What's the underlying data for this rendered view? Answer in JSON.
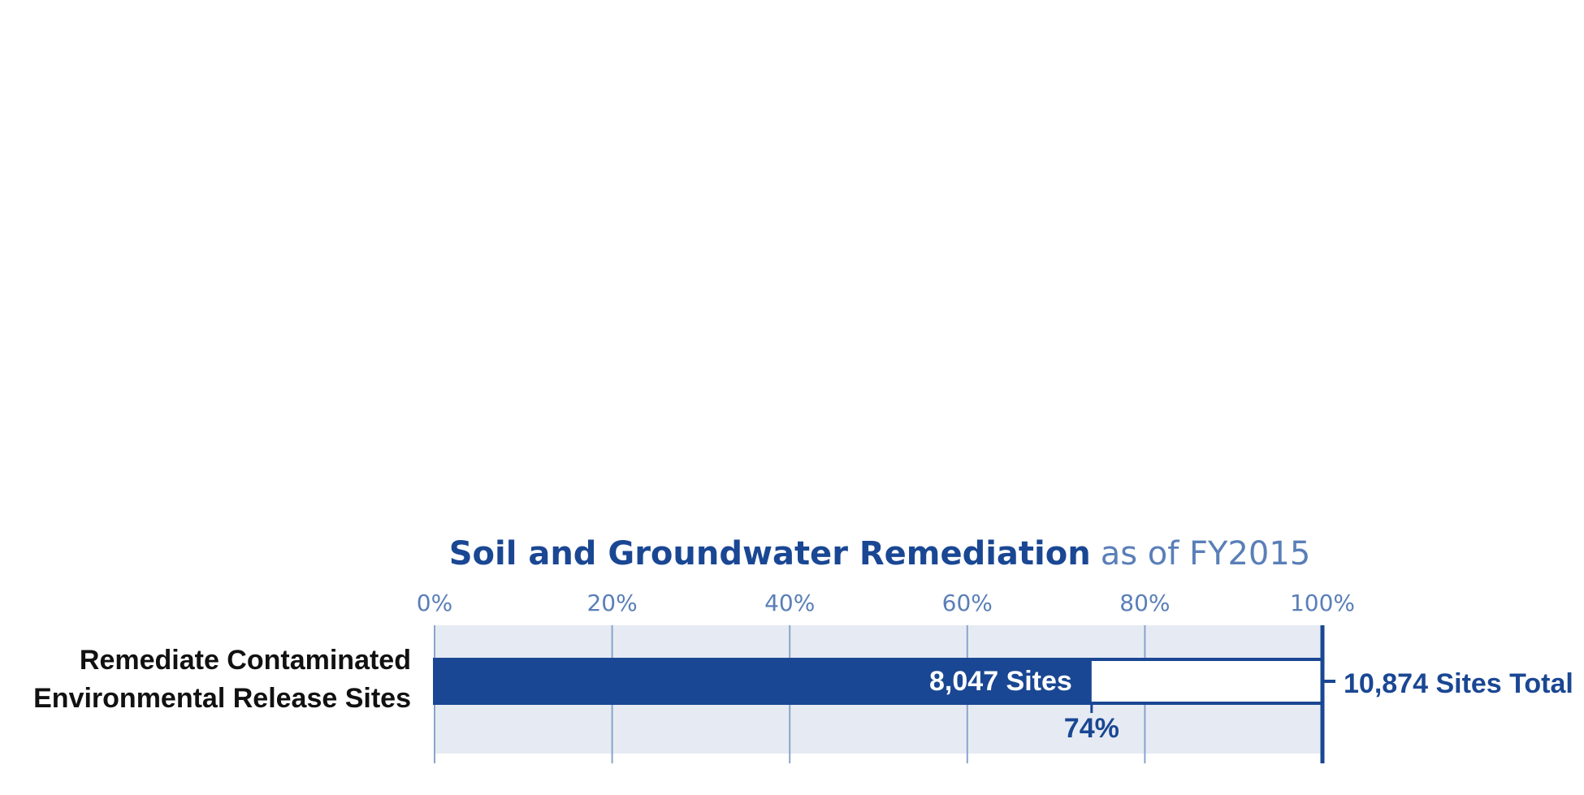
{
  "chart_data": {
    "type": "bar",
    "title_bold": "Soil and Groundwater Remediation",
    "title_light": "as of FY2015",
    "categories": [
      "Remediate Contaminated Environmental Release Sites"
    ],
    "category_lines": [
      "Remediate Contaminated",
      "Environmental Release Sites"
    ],
    "completed_sites": 8047,
    "total_sites": 10874,
    "percent_complete": 74,
    "completed_label": "8,047 Sites",
    "total_label": "10,874 Sites Total",
    "percent_label": "74%",
    "x_ticks": [
      "0%",
      "20%",
      "40%",
      "60%",
      "80%",
      "100%"
    ],
    "xlim": [
      0,
      100
    ],
    "grid": true,
    "colors": {
      "bar": "#1a4793",
      "band": "#e6ebf3",
      "grid": "#8aa4cc",
      "axis_text": "#5a7fb8",
      "title": "#1a4793"
    }
  }
}
